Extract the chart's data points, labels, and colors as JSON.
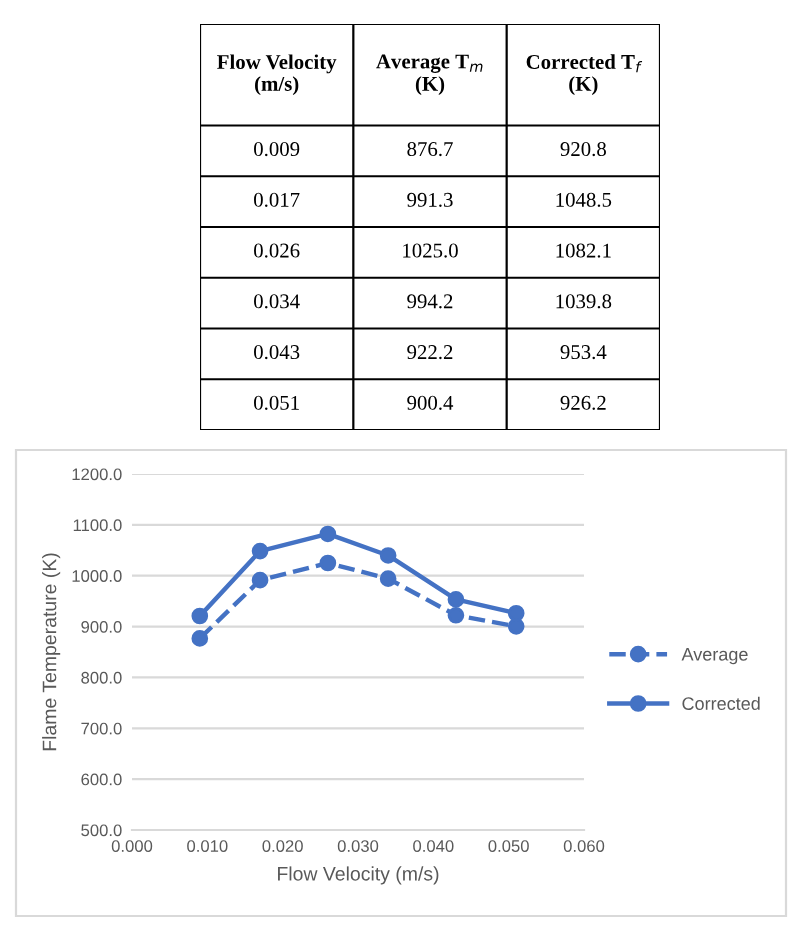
{
  "chart_data": [
    {
      "type": "other",
      "annotations": [
        "Flow Velocity (m/s)",
        "Average T$_{m}$ (K)",
        "Corrected T$_{f}$ (K)",
        "0.009",
        "876.7",
        "920.8",
        "0.017",
        "991.3",
        "1048.5",
        "0.026",
        "1025.0",
        "1082.1",
        "0.034",
        "994.2",
        "1039.8",
        "0.043",
        "922.2",
        "953.4",
        "0.051",
        "900.4",
        "926.2"
      ]
    },
    {
      "type": "line",
      "xlabel": "Flow Velocity (m/s)",
      "ylabel": "Flame Temperature (K)",
      "x": [
        0.009,
        0.017,
        0.026,
        0.034,
        0.043,
        0.051
      ],
      "series": [
        {
          "name": "Average",
          "color": "#4472c4",
          "line_style": "dashed",
          "marker": "circle",
          "values": [
            876.7,
            991.3,
            1025.0,
            994.2,
            922.2,
            900.4
          ]
        },
        {
          "name": "Corrected",
          "color": "#4472c4",
          "line_style": "solid",
          "marker": "circle",
          "values": [
            920.8,
            1048.5,
            1082.1,
            1039.8,
            953.4,
            926.2
          ]
        }
      ],
      "xlim": [
        0.0,
        0.06
      ],
      "xticks": [
        {
          "value": 0.0,
          "label": "0.000"
        },
        {
          "value": 0.01,
          "label": "0.010"
        },
        {
          "value": 0.02,
          "label": "0.020"
        },
        {
          "value": 0.03,
          "label": "0.030"
        },
        {
          "value": 0.04,
          "label": "0.040"
        },
        {
          "value": 0.05,
          "label": "0.050"
        },
        {
          "value": 0.06,
          "label": "0.060"
        }
      ],
      "ylim": [
        500.0,
        1200.0
      ],
      "yticks": [
        {
          "value": 500,
          "label": "500.0"
        },
        {
          "value": 600,
          "label": "600.0"
        },
        {
          "value": 700,
          "label": "700.0"
        },
        {
          "value": 800,
          "label": "800.0"
        },
        {
          "value": 900,
          "label": "900.0"
        },
        {
          "value": 1000,
          "label": "1000.0"
        },
        {
          "value": 1100,
          "label": "1100.0"
        },
        {
          "value": 1200,
          "label": "1200.0"
        }
      ],
      "grid": "y",
      "legend": "right"
    }
  ]
}
